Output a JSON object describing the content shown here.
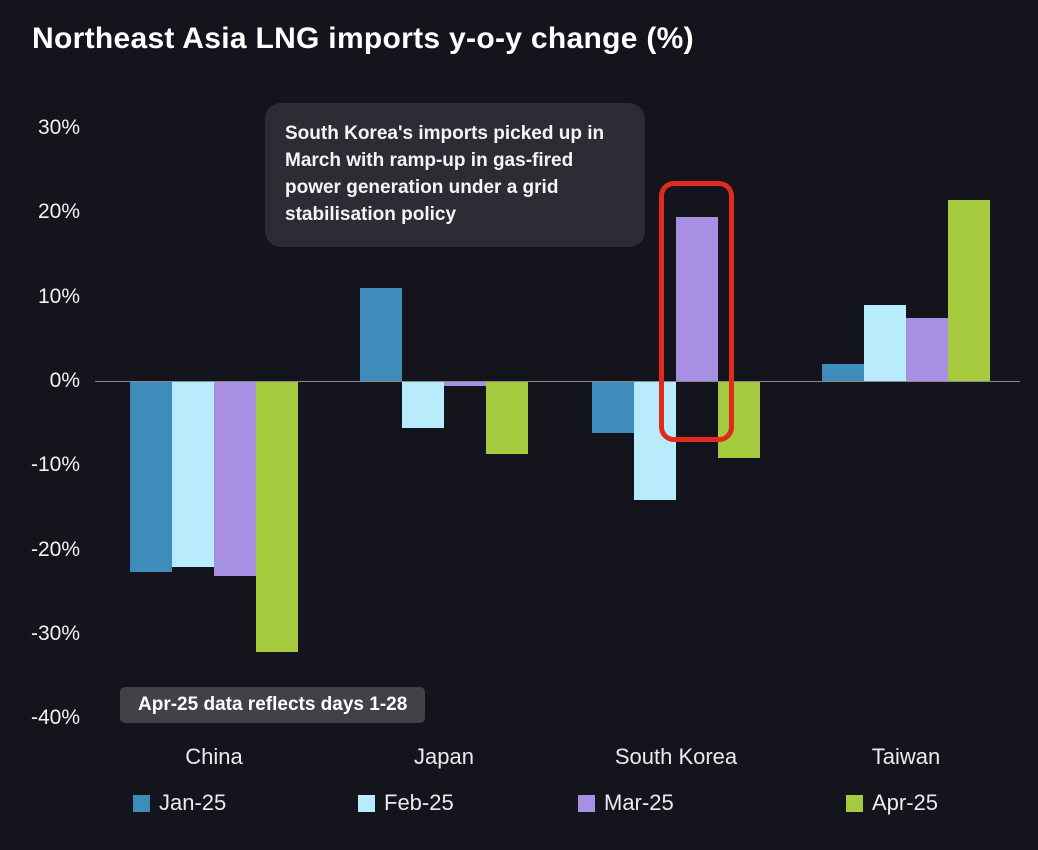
{
  "title": "Northeast Asia LNG imports y-o-y change (%)",
  "annotation": {
    "text": "South Korea's imports picked up in March with ramp-up in gas-fired power generation under a grid stabilisation policy"
  },
  "footnote": "Apr-25 data reflects days 1-28",
  "colors": {
    "background": "#14141c",
    "highlight_red": "#e02a1e",
    "annotation_bg": "#2c2c34",
    "footnote_bg": "#414148",
    "axis_line": "#8a8a90"
  },
  "chart_data": {
    "type": "bar",
    "title": "Northeast Asia LNG imports y-o-y change (%)",
    "categories": [
      "China",
      "Japan",
      "South Korea",
      "Taiwan"
    ],
    "series": [
      {
        "name": "Jan-25",
        "color": "#3e8cba",
        "values": [
          -22.5,
          11,
          -6,
          2
        ]
      },
      {
        "name": "Feb-25",
        "color": "#b8ecfc",
        "values": [
          -22,
          -5.5,
          -14,
          9
        ]
      },
      {
        "name": "Mar-25",
        "color": "#a78fe4",
        "values": [
          -23,
          -0.5,
          19.5,
          7.5
        ]
      },
      {
        "name": "Apr-25",
        "color": "#a6ca3e",
        "values": [
          -32,
          -8.5,
          -9,
          21.5
        ]
      }
    ],
    "xlabel": "",
    "ylabel": "",
    "ylim": [
      -40,
      30
    ],
    "yticks": [
      30,
      20,
      10,
      0,
      -10,
      -20,
      -30,
      -40
    ],
    "ytick_labels": [
      "30%",
      "20%",
      "10%",
      "0%",
      "-10%",
      "-20%",
      "-30%",
      "-40%"
    ],
    "grid": false,
    "legend_position": "bottom",
    "highlight": {
      "category": "South Korea",
      "series": "Mar-25",
      "color": "#e02a1e"
    }
  }
}
